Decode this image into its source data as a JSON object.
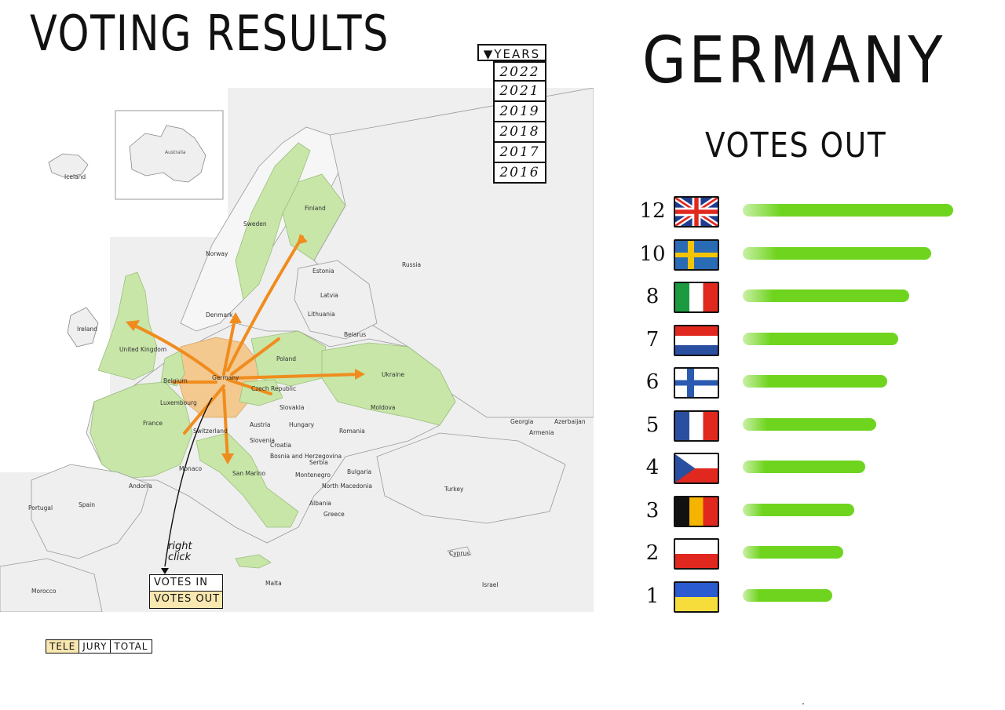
{
  "header": {
    "title": "VOTING RESULTS"
  },
  "years": {
    "label": "▼YEARS",
    "items": [
      "2022",
      "2021",
      "2019",
      "2018",
      "2017",
      "2016"
    ]
  },
  "map": {
    "inset_label": "Australia",
    "countries": [
      {
        "id": "iceland",
        "name": "Iceland"
      },
      {
        "id": "norway",
        "name": "Norway"
      },
      {
        "id": "sweden",
        "name": "Sweden"
      },
      {
        "id": "finland",
        "name": "Finland"
      },
      {
        "id": "russia",
        "name": "Russia"
      },
      {
        "id": "estonia",
        "name": "Estonia"
      },
      {
        "id": "latvia",
        "name": "Latvia"
      },
      {
        "id": "lithuania",
        "name": "Lithuania"
      },
      {
        "id": "denmark",
        "name": "Denmark"
      },
      {
        "id": "ireland",
        "name": "Ireland"
      },
      {
        "id": "united-kingdom",
        "name": "United Kingdom"
      },
      {
        "id": "belarus",
        "name": "Belarus"
      },
      {
        "id": "poland",
        "name": "Poland"
      },
      {
        "id": "germany",
        "name": "Germany"
      },
      {
        "id": "belgium",
        "name": "Belgium"
      },
      {
        "id": "luxembourg",
        "name": "Luxembourg"
      },
      {
        "id": "ukraine",
        "name": "Ukraine"
      },
      {
        "id": "czech-republic",
        "name": "Czech Republic"
      },
      {
        "id": "slovakia",
        "name": "Slovakia"
      },
      {
        "id": "moldova",
        "name": "Moldova"
      },
      {
        "id": "france",
        "name": "France"
      },
      {
        "id": "switzerland",
        "name": "Switzerland"
      },
      {
        "id": "austria",
        "name": "Austria"
      },
      {
        "id": "hungary",
        "name": "Hungary"
      },
      {
        "id": "romania",
        "name": "Romania"
      },
      {
        "id": "slovenia",
        "name": "Slovenia"
      },
      {
        "id": "croatia",
        "name": "Croatia"
      },
      {
        "id": "bosnia",
        "name": "Bosnia and Herzegovina"
      },
      {
        "id": "serbia",
        "name": "Serbia"
      },
      {
        "id": "montenegro",
        "name": "Montenegro"
      },
      {
        "id": "bulgaria",
        "name": "Bulgaria"
      },
      {
        "id": "north-macedonia",
        "name": "North Macedonia"
      },
      {
        "id": "albania",
        "name": "Albania"
      },
      {
        "id": "greece",
        "name": "Greece"
      },
      {
        "id": "georgia",
        "name": "Georgia"
      },
      {
        "id": "armenia",
        "name": "Armenia"
      },
      {
        "id": "azerbaijan",
        "name": "Azerbaijan"
      },
      {
        "id": "turkey",
        "name": "Turkey"
      },
      {
        "id": "monaco",
        "name": "Monaco"
      },
      {
        "id": "san-marino",
        "name": "San Marino"
      },
      {
        "id": "andorra",
        "name": "Andorra"
      },
      {
        "id": "portugal",
        "name": "Portugal"
      },
      {
        "id": "spain",
        "name": "Spain"
      },
      {
        "id": "morocco",
        "name": "Morocco"
      },
      {
        "id": "malta",
        "name": "Malta"
      },
      {
        "id": "cyprus",
        "name": "Cyprus"
      },
      {
        "id": "israel",
        "name": "Israel"
      }
    ],
    "highlight_color": "#c8e6a8",
    "source_color": "#f3c98f",
    "arrow_color": "#f08c1e"
  },
  "context_menu": {
    "hint": "right click",
    "items": [
      {
        "label": "VOTES IN",
        "active": false
      },
      {
        "label": "VOTES OUT",
        "active": true
      }
    ],
    "active_color": "#f8e7b0"
  },
  "mode_toggle": {
    "items": [
      {
        "label": "TELE",
        "active": true
      },
      {
        "label": "JURY",
        "active": false
      },
      {
        "label": "TOTAL",
        "active": false
      }
    ]
  },
  "panel": {
    "country": "GERMANY",
    "subtitle": "VOTES OUT",
    "bar_color": "#6fd41e"
  },
  "ranking": [
    {
      "points": "12",
      "flag": "united-kingdom-flag-icon",
      "value": 12
    },
    {
      "points": "10",
      "flag": "sweden-flag-icon",
      "value": 10
    },
    {
      "points": "8",
      "flag": "italy-flag-icon",
      "value": 8
    },
    {
      "points": "7",
      "flag": "netherlands-flag-icon",
      "value": 7
    },
    {
      "points": "6",
      "flag": "finland-flag-icon",
      "value": 6
    },
    {
      "points": "5",
      "flag": "france-flag-icon",
      "value": 5
    },
    {
      "points": "4",
      "flag": "czech-republic-flag-icon",
      "value": 4
    },
    {
      "points": "3",
      "flag": "belgium-flag-icon",
      "value": 3
    },
    {
      "points": "2",
      "flag": "poland-flag-icon",
      "value": 2
    },
    {
      "points": "1",
      "flag": "ukraine-flag-icon",
      "value": 1
    }
  ]
}
